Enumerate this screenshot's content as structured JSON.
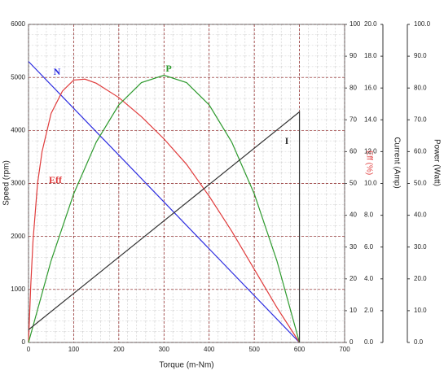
{
  "chart_data": {
    "type": "line",
    "xlabel": "Torque (m-Nm)",
    "ylabel": "Speed (rpm)",
    "y2label": "Eff (%)",
    "y3label": "Current (Amp)",
    "y4label": "Power (Watt)",
    "xlim": [
      0,
      700
    ],
    "xticks": [
      0,
      100,
      200,
      300,
      400,
      500,
      600,
      700
    ],
    "ylim": [
      0,
      6000
    ],
    "yticks": [
      0,
      1000,
      2000,
      3000,
      4000,
      5000,
      6000
    ],
    "y2lim": [
      0,
      100
    ],
    "y2ticks": [
      0,
      10,
      20,
      30,
      40,
      50,
      60,
      70,
      80,
      90,
      100
    ],
    "y3lim": [
      0,
      20
    ],
    "y3ticks": [
      {
        "value": 0,
        "label": "0.0"
      },
      {
        "value": 2,
        "label": "2.0"
      },
      {
        "value": 4,
        "label": "4.0"
      },
      {
        "value": 6,
        "label": "6.0"
      },
      {
        "value": 8,
        "label": "8.0"
      },
      {
        "value": 10,
        "label": "10.0"
      },
      {
        "value": 12,
        "label": "12.0"
      },
      {
        "value": 14,
        "label": "14.0"
      },
      {
        "value": 16,
        "label": "16.0"
      },
      {
        "value": 18,
        "label": "18.0"
      },
      {
        "value": 20,
        "label": "20.0"
      }
    ],
    "y4lim": [
      0,
      100
    ],
    "y4ticks": [
      {
        "value": 0,
        "label": "0.0"
      },
      {
        "value": 10,
        "label": "10.0"
      },
      {
        "value": 20,
        "label": "20.0"
      },
      {
        "value": 30,
        "label": "30.0"
      },
      {
        "value": 40,
        "label": "40.0"
      },
      {
        "value": 50,
        "label": "50.0"
      },
      {
        "value": 60,
        "label": "60.0"
      },
      {
        "value": 70,
        "label": "70.0"
      },
      {
        "value": 80,
        "label": "80.0"
      },
      {
        "value": 90,
        "label": "90.0"
      },
      {
        "value": 100,
        "label": "100.0"
      }
    ],
    "grid": true,
    "series": [
      {
        "name": "N",
        "color": "#2b2be0",
        "axis": "y",
        "x": [
          0,
          600
        ],
        "values": [
          5300,
          0
        ]
      },
      {
        "name": "Eff",
        "color": "#e03c3c",
        "axis": "y2",
        "x": [
          0,
          5,
          10,
          20,
          30,
          50,
          75,
          100,
          125,
          150,
          200,
          250,
          300,
          350,
          400,
          450,
          500,
          550,
          600
        ],
        "values": [
          0,
          18,
          32,
          50,
          60,
          72,
          79,
          82.5,
          82.8,
          81.5,
          77,
          71,
          64,
          56,
          46,
          35,
          23,
          11,
          0
        ]
      },
      {
        "name": "P",
        "color": "#2e9a2e",
        "axis": "y4",
        "x": [
          0,
          50,
          100,
          150,
          200,
          250,
          300,
          350,
          400,
          450,
          500,
          550,
          600
        ],
        "values": [
          0,
          25.7,
          46.7,
          63,
          74.7,
          81.7,
          84,
          81.7,
          74.7,
          63,
          46.7,
          25.7,
          0
        ]
      },
      {
        "name": "I",
        "color": "#333333",
        "axis": "y3",
        "x": [
          0,
          600,
          600
        ],
        "values": [
          0.8,
          14.5,
          0
        ]
      }
    ]
  }
}
